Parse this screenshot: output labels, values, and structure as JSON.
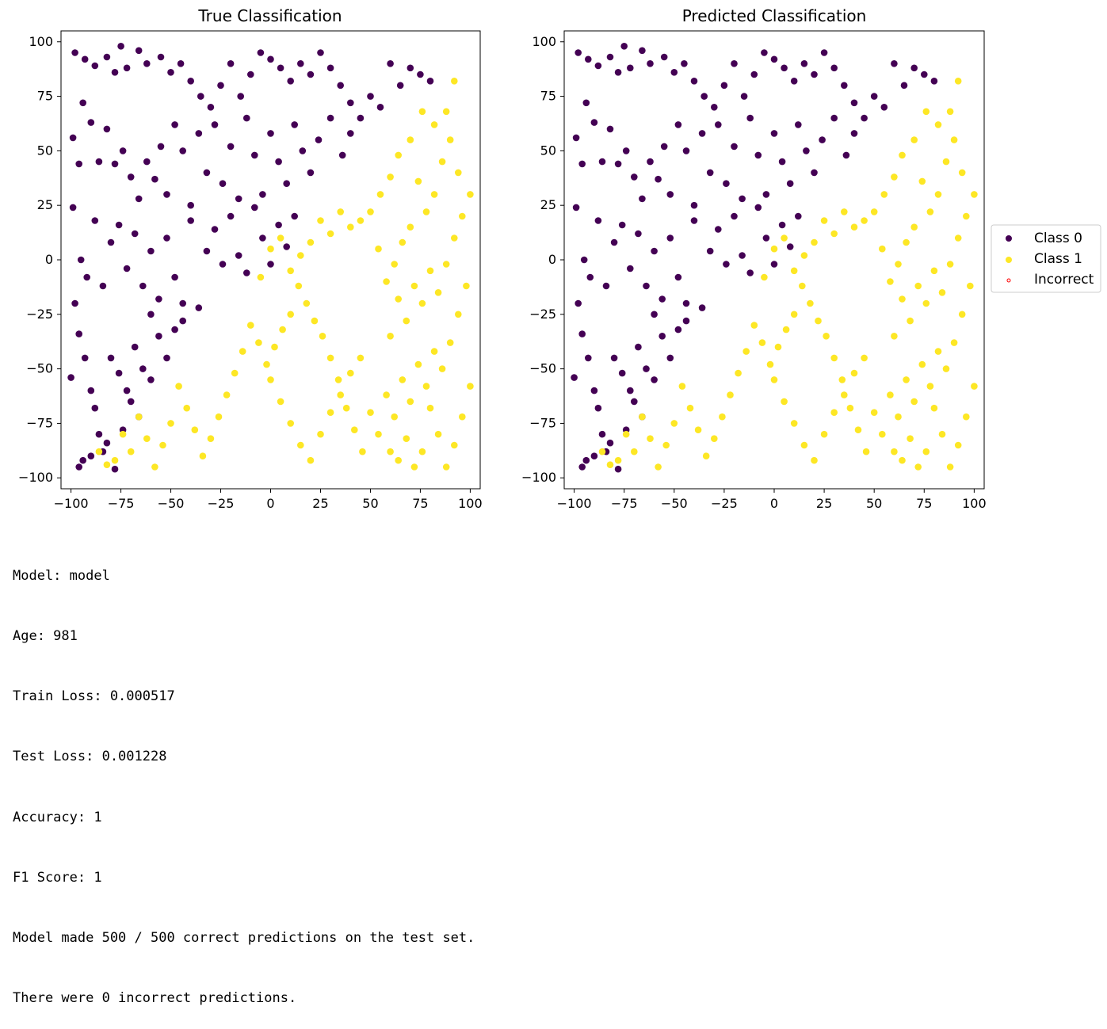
{
  "chart_data": [
    {
      "type": "scatter",
      "title": "True Classification",
      "xlabel": "",
      "ylabel": "",
      "xlim": [
        -105,
        105
      ],
      "ylim": [
        -105,
        105
      ],
      "xticks": [
        -100,
        -75,
        -50,
        -25,
        0,
        25,
        50,
        75,
        100
      ],
      "yticks": [
        -100,
        -75,
        -50,
        -25,
        0,
        25,
        50,
        75,
        100
      ],
      "xtick_labels": [
        "−100",
        "−75",
        "−50",
        "−25",
        "0",
        "25",
        "50",
        "75",
        "100"
      ],
      "ytick_labels": [
        "−100",
        "−75",
        "−50",
        "−25",
        "0",
        "25",
        "50",
        "75",
        "100"
      ],
      "grid": false,
      "series": [
        {
          "name": "Class 0",
          "color": "#440154",
          "points": [
            [
              -98,
              95
            ],
            [
              -93,
              92
            ],
            [
              -88,
              89
            ],
            [
              -82,
              93
            ],
            [
              -78,
              86
            ],
            [
              -75,
              98
            ],
            [
              -72,
              88
            ],
            [
              -66,
              96
            ],
            [
              -62,
              90
            ],
            [
              -55,
              93
            ],
            [
              -50,
              86
            ],
            [
              -45,
              90
            ],
            [
              -40,
              82
            ],
            [
              -35,
              75
            ],
            [
              -30,
              70
            ],
            [
              -25,
              80
            ],
            [
              -20,
              90
            ],
            [
              -15,
              75
            ],
            [
              -10,
              85
            ],
            [
              -5,
              95
            ],
            [
              0,
              92
            ],
            [
              5,
              88
            ],
            [
              10,
              82
            ],
            [
              15,
              90
            ],
            [
              20,
              85
            ],
            [
              25,
              95
            ],
            [
              30,
              88
            ],
            [
              35,
              80
            ],
            [
              40,
              72
            ],
            [
              45,
              65
            ],
            [
              50,
              75
            ],
            [
              55,
              70
            ],
            [
              60,
              90
            ],
            [
              65,
              80
            ],
            [
              70,
              88
            ],
            [
              75,
              85
            ],
            [
              80,
              82
            ],
            [
              -99,
              56
            ],
            [
              -96,
              44
            ],
            [
              -94,
              72
            ],
            [
              -90,
              63
            ],
            [
              -86,
              45
            ],
            [
              -82,
              60
            ],
            [
              -78,
              44
            ],
            [
              -74,
              50
            ],
            [
              -70,
              38
            ],
            [
              -66,
              28
            ],
            [
              -62,
              45
            ],
            [
              -58,
              37
            ],
            [
              -55,
              52
            ],
            [
              -52,
              30
            ],
            [
              -48,
              62
            ],
            [
              -44,
              50
            ],
            [
              -40,
              25
            ],
            [
              -36,
              58
            ],
            [
              -32,
              40
            ],
            [
              -28,
              62
            ],
            [
              -24,
              35
            ],
            [
              -20,
              52
            ],
            [
              -16,
              28
            ],
            [
              -12,
              65
            ],
            [
              -8,
              48
            ],
            [
              -4,
              30
            ],
            [
              0,
              58
            ],
            [
              4,
              45
            ],
            [
              8,
              35
            ],
            [
              12,
              62
            ],
            [
              16,
              50
            ],
            [
              20,
              40
            ],
            [
              24,
              55
            ],
            [
              30,
              65
            ],
            [
              36,
              48
            ],
            [
              40,
              58
            ],
            [
              -99,
              24
            ],
            [
              -95,
              0
            ],
            [
              -92,
              -8
            ],
            [
              -88,
              18
            ],
            [
              -84,
              -12
            ],
            [
              -80,
              8
            ],
            [
              -76,
              16
            ],
            [
              -72,
              -4
            ],
            [
              -68,
              12
            ],
            [
              -64,
              -12
            ],
            [
              -60,
              4
            ],
            [
              -56,
              -18
            ],
            [
              -52,
              10
            ],
            [
              -48,
              -8
            ],
            [
              -44,
              -20
            ],
            [
              -40,
              18
            ],
            [
              -36,
              -22
            ],
            [
              -32,
              4
            ],
            [
              -28,
              14
            ],
            [
              -24,
              -2
            ],
            [
              -20,
              20
            ],
            [
              -16,
              2
            ],
            [
              -12,
              -6
            ],
            [
              -8,
              24
            ],
            [
              -4,
              10
            ],
            [
              0,
              -2
            ],
            [
              4,
              16
            ],
            [
              8,
              6
            ],
            [
              12,
              20
            ],
            [
              -100,
              -54
            ],
            [
              -98,
              -20
            ],
            [
              -96,
              -34
            ],
            [
              -93,
              -45
            ],
            [
              -88,
              -68
            ],
            [
              -86,
              -80
            ],
            [
              -84,
              -88
            ],
            [
              -90,
              -60
            ],
            [
              -80,
              -45
            ],
            [
              -76,
              -52
            ],
            [
              -72,
              -60
            ],
            [
              -68,
              -40
            ],
            [
              -64,
              -50
            ],
            [
              -60,
              -25
            ],
            [
              -56,
              -35
            ],
            [
              -52,
              -45
            ],
            [
              -48,
              -32
            ],
            [
              -44,
              -28
            ],
            [
              -78,
              -96
            ],
            [
              -82,
              -84
            ],
            [
              -94,
              -92
            ],
            [
              -96,
              -95
            ],
            [
              -90,
              -90
            ],
            [
              -70,
              -65
            ],
            [
              -66,
              -72
            ],
            [
              -60,
              -55
            ],
            [
              -74,
              -78
            ]
          ]
        },
        {
          "name": "Class 1",
          "color": "#fde725",
          "points": [
            [
              92,
              82
            ],
            [
              88,
              68
            ],
            [
              82,
              62
            ],
            [
              76,
              68
            ],
            [
              70,
              55
            ],
            [
              64,
              48
            ],
            [
              60,
              38
            ],
            [
              55,
              30
            ],
            [
              50,
              22
            ],
            [
              45,
              18
            ],
            [
              40,
              15
            ],
            [
              35,
              22
            ],
            [
              30,
              12
            ],
            [
              25,
              18
            ],
            [
              20,
              8
            ],
            [
              15,
              2
            ],
            [
              10,
              -5
            ],
            [
              5,
              10
            ],
            [
              0,
              5
            ],
            [
              -5,
              -8
            ],
            [
              94,
              40
            ],
            [
              90,
              55
            ],
            [
              86,
              45
            ],
            [
              82,
              30
            ],
            [
              78,
              22
            ],
            [
              74,
              36
            ],
            [
              70,
              15
            ],
            [
              66,
              8
            ],
            [
              62,
              -2
            ],
            [
              58,
              -10
            ],
            [
              54,
              5
            ],
            [
              100,
              30
            ],
            [
              96,
              20
            ],
            [
              92,
              10
            ],
            [
              88,
              -2
            ],
            [
              84,
              -15
            ],
            [
              80,
              -5
            ],
            [
              76,
              -20
            ],
            [
              72,
              -12
            ],
            [
              68,
              -28
            ],
            [
              64,
              -18
            ],
            [
              60,
              -35
            ],
            [
              98,
              -12
            ],
            [
              94,
              -25
            ],
            [
              90,
              -38
            ],
            [
              86,
              -50
            ],
            [
              82,
              -42
            ],
            [
              78,
              -58
            ],
            [
              74,
              -48
            ],
            [
              70,
              -65
            ],
            [
              66,
              -55
            ],
            [
              62,
              -72
            ],
            [
              58,
              -62
            ],
            [
              54,
              -80
            ],
            [
              50,
              -70
            ],
            [
              46,
              -88
            ],
            [
              42,
              -78
            ],
            [
              38,
              -68
            ],
            [
              34,
              -55
            ],
            [
              30,
              -45
            ],
            [
              26,
              -35
            ],
            [
              22,
              -28
            ],
            [
              18,
              -20
            ],
            [
              14,
              -12
            ],
            [
              10,
              -25
            ],
            [
              6,
              -32
            ],
            [
              2,
              -40
            ],
            [
              -2,
              -48
            ],
            [
              -6,
              -38
            ],
            [
              -10,
              -30
            ],
            [
              -14,
              -42
            ],
            [
              -18,
              -52
            ],
            [
              -22,
              -62
            ],
            [
              -26,
              -72
            ],
            [
              -30,
              -82
            ],
            [
              -34,
              -90
            ],
            [
              -38,
              -78
            ],
            [
              -42,
              -68
            ],
            [
              -46,
              -58
            ],
            [
              -50,
              -75
            ],
            [
              -54,
              -85
            ],
            [
              -58,
              -95
            ],
            [
              -62,
              -82
            ],
            [
              -66,
              -72
            ],
            [
              -70,
              -88
            ],
            [
              -74,
              -80
            ],
            [
              -78,
              -92
            ],
            [
              -82,
              -94
            ],
            [
              -86,
              -88
            ],
            [
              0,
              -55
            ],
            [
              5,
              -65
            ],
            [
              10,
              -75
            ],
            [
              15,
              -85
            ],
            [
              20,
              -92
            ],
            [
              25,
              -80
            ],
            [
              30,
              -70
            ],
            [
              35,
              -62
            ],
            [
              40,
              -52
            ],
            [
              45,
              -45
            ],
            [
              100,
              -58
            ],
            [
              96,
              -72
            ],
            [
              92,
              -85
            ],
            [
              88,
              -95
            ],
            [
              84,
              -80
            ],
            [
              80,
              -68
            ],
            [
              76,
              -88
            ],
            [
              72,
              -95
            ],
            [
              68,
              -82
            ],
            [
              64,
              -92
            ],
            [
              60,
              -88
            ]
          ]
        }
      ]
    },
    {
      "type": "scatter",
      "title": "Predicted Classification",
      "xlabel": "",
      "ylabel": "",
      "xlim": [
        -105,
        105
      ],
      "ylim": [
        -105,
        105
      ],
      "xticks": [
        -100,
        -75,
        -50,
        -25,
        0,
        25,
        50,
        75,
        100
      ],
      "yticks": [
        -100,
        -75,
        -50,
        -25,
        0,
        25,
        50,
        75,
        100
      ],
      "xtick_labels": [
        "−100",
        "−75",
        "−50",
        "−25",
        "0",
        "25",
        "50",
        "75",
        "100"
      ],
      "ytick_labels": [
        "−100",
        "−75",
        "−50",
        "−25",
        "0",
        "25",
        "50",
        "75",
        "100"
      ],
      "grid": false,
      "legend_placement": "center-right outside",
      "legend": [
        {
          "label": "Class 0",
          "color": "#440154",
          "marker": "filled"
        },
        {
          "label": "Class 1",
          "color": "#fde725",
          "marker": "filled"
        },
        {
          "label": "Incorrect",
          "color": "#ff0000",
          "marker": "hollow-small"
        }
      ],
      "series_source": "same points as True Classification (all predictions correct)"
    }
  ],
  "output_lines": [
    "Model: model",
    "Age: 981",
    "Train Loss: 0.000517",
    "Test Loss: 0.001228",
    "Accuracy: 1",
    "F1 Score: 1",
    "Model made 500 / 500 correct predictions on the test set.",
    "There were 0 incorrect predictions."
  ]
}
